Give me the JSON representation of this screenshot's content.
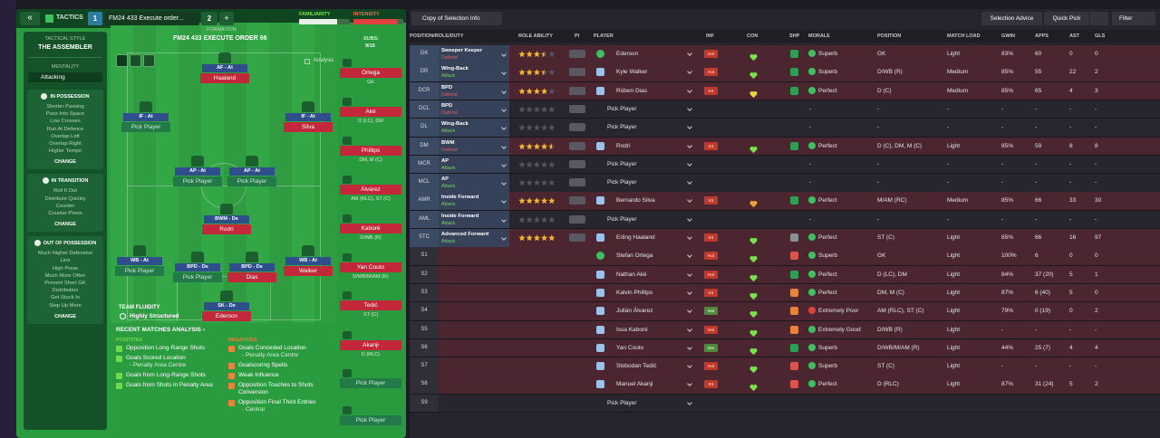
{
  "top_bar": {
    "back": "«",
    "tab": "TACTICS",
    "slot1": "1",
    "tactic_name": "FM24 433 Execute order...",
    "slot2": "2",
    "add": "+",
    "familiarity": "FAMILIARITY",
    "intensity": "INTENSITY"
  },
  "sidebar": {
    "style_label": "TACTICAL STYLE",
    "style": "THE ASSEMBLER",
    "mentality_label": "MENTALITY",
    "mentality": "Attacking",
    "sections": [
      {
        "title": "IN POSSESSION",
        "items": [
          "Shorter Passing",
          "Pass Into Space",
          "Low Crosses",
          "Run At Defence",
          "Overlap Left",
          "Overlap Right",
          "Higher Tempo"
        ],
        "button": "CHANGE"
      },
      {
        "title": "IN TRANSITION",
        "items": [
          "Roll It Out",
          "Distribute Quickly",
          "Counter",
          "Counter-Press"
        ],
        "button": "CHANGE"
      },
      {
        "title": "OUT OF POSSESSION",
        "items": [
          "Much Higher Defensive",
          "Line",
          "High Press",
          "Much More Often",
          "Prevent Short GK",
          "Distribution",
          "Get Stuck In",
          "Step Up More"
        ],
        "button": "CHANGE"
      }
    ]
  },
  "formation": {
    "label": "FORMATION",
    "name": "FM24 433 EXECUTE ORDER 66",
    "subs_label": "SUBS:",
    "subs_count": "9/15",
    "analysis": "Analysis",
    "fluidity_label": "TEAM FLUIDITY",
    "fluidity": "Highly Structured",
    "players": [
      {
        "role": "AF - At",
        "name": "Haaland"
      },
      {
        "role": "IF - At",
        "name": "Pick Player"
      },
      {
        "role": "IF - At",
        "name": "Silva"
      },
      {
        "role": "AP - At",
        "name": "Pick Player"
      },
      {
        "role": "AP - At",
        "name": "Pick Player"
      },
      {
        "role": "BWM - De",
        "name": "Rodri"
      },
      {
        "role": "WB - At",
        "name": "Pick Player"
      },
      {
        "role": "BPD - De",
        "name": "Pick Player"
      },
      {
        "role": "BPD - De",
        "name": "Dias"
      },
      {
        "role": "WB - At",
        "name": "Walker"
      },
      {
        "role": "SK - De",
        "name": "Ederson"
      }
    ]
  },
  "subs": [
    {
      "name": "Ortega",
      "position": "GK"
    },
    {
      "name": "Aké",
      "position": "D (LC), DM"
    },
    {
      "name": "Phillips",
      "position": "DM, M (C)"
    },
    {
      "name": "Álvarez",
      "position": "AM (RLC), ST (C)"
    },
    {
      "name": "Kaboré",
      "position": "D/WB (R)"
    },
    {
      "name": "Yan Couto",
      "position": "D/WB/M/AM (R)"
    },
    {
      "name": "Tedić",
      "position": "ST (C)"
    },
    {
      "name": "Akanji",
      "position": "D (RLC)"
    },
    {
      "name": "Pick Player"
    },
    {
      "name": "Pick Player"
    }
  ],
  "analysis": {
    "title": "RECENT MATCHES ANALYSIS ›",
    "positives_label": "POSITIVES",
    "positives": [
      {
        "text": "Opposition Long-Range Shots"
      },
      {
        "text": "Goals Scored Location",
        "detail": "- Penalty Area Centre"
      },
      {
        "text": "Goals from Long-Range Shots"
      },
      {
        "text": "Goals from Shots in Penalty Area"
      }
    ],
    "negatives_label": "NEGATIVES",
    "negatives": [
      {
        "text": "Goals Conceded Location",
        "detail": "- Penalty Area Centre"
      },
      {
        "text": "Goalscoring Spells"
      },
      {
        "text": "Weak Influence"
      },
      {
        "text": "Opposition Touches to Shots Conversion"
      },
      {
        "text": "Opposition Final Third Entries",
        "detail": "- Central"
      }
    ]
  },
  "toolbar": {
    "copy": "Copy of Selection Info",
    "advice": "Selection Advice",
    "quick_pick": "Quick Pick",
    "filter": "Filter"
  },
  "table": {
    "headers": [
      "POSITION/ROLE/DUTY",
      "ROLE ABILITY",
      "PI",
      "PLAYER",
      "INF",
      "CON",
      "SHP",
      "MORALE",
      "POSITION",
      "MATCH LOAD",
      "GWIN",
      "APPS",
      "AST",
      "GLS"
    ],
    "rows": [
      {
        "slot": "GK",
        "role": "Sweeper Keeper",
        "duty": "Defend",
        "duty_color": "#e35d62",
        "role_ability": 3.5,
        "player": "Ederson",
        "inf": "Hol",
        "inf_color": "#c0392b",
        "con_color": "#7be04f",
        "shp_color": "#2f9e52",
        "morale": "Superb",
        "morale_color": "#3fbf5f",
        "position": "GK",
        "match_load": "Light",
        "gwin": "83%",
        "apps": "60",
        "ast": 0,
        "gls": 0
      },
      {
        "slot": "DR",
        "role": "Wing-Back",
        "duty": "Attack",
        "duty_color": "#7bd85a",
        "role_ability": 3.5,
        "player": "Kyle Walker",
        "inf": "Hol",
        "inf_color": "#c0392b",
        "con_color": "#7be04f",
        "shp_color": "#2f9e52",
        "morale": "Superb",
        "morale_color": "#3fbf5f",
        "position": "D/WB (R)",
        "match_load": "Medium",
        "gwin": "85%",
        "apps": "55",
        "ast": 22,
        "gls": 2
      },
      {
        "slot": "DCR",
        "role": "BPD",
        "duty": "Defend",
        "duty_color": "#e35d62",
        "role_ability": 4,
        "player": "Rúben Dias",
        "inf": "Int",
        "inf_color": "#c0392b",
        "con_color": "#e8d24a",
        "shp_color": "#2f9e52",
        "morale": "Perfect",
        "morale_color": "#3fbf5f",
        "position": "D (C)",
        "match_load": "Medium",
        "gwin": "85%",
        "apps": "65",
        "ast": 4,
        "gls": 3
      },
      {
        "slot": "DCL",
        "role": "BPD",
        "duty": "Defend",
        "duty_color": "#e35d62",
        "player": "Pick Player",
        "morale": "-",
        "position": "-",
        "match_load": "-",
        "gwin": "-",
        "apps": "-",
        "ast": "-",
        "gls": "-"
      },
      {
        "slot": "DL",
        "role": "Wing-Back",
        "duty": "Attack",
        "duty_color": "#7bd85a",
        "player": "Pick Player",
        "morale": "-",
        "position": "-",
        "match_load": "-",
        "gwin": "-",
        "apps": "-",
        "ast": "-",
        "gls": "-"
      },
      {
        "slot": "DM",
        "role": "BWM",
        "duty": "Defend",
        "duty_color": "#e35d62",
        "role_ability": 4.5,
        "player": "Rodri",
        "inf": "Int",
        "inf_color": "#c0392b",
        "con_color": "#7be04f",
        "shp_color": "#2f9e52",
        "morale": "Perfect",
        "morale_color": "#3fbf5f",
        "position": "D (C), DM, M (C)",
        "match_load": "Light",
        "gwin": "85%",
        "apps": "59",
        "ast": 8,
        "gls": 8
      },
      {
        "slot": "MCR",
        "role": "AP",
        "duty": "Attack",
        "duty_color": "#7bd85a",
        "player": "Pick Player",
        "morale": "-",
        "position": "-",
        "match_load": "-",
        "gwin": "-",
        "apps": "-",
        "ast": "-",
        "gls": "-"
      },
      {
        "slot": "MCL",
        "role": "AP",
        "duty": "Attack",
        "duty_color": "#7bd85a",
        "player": "Pick Player",
        "morale": "-",
        "position": "-",
        "match_load": "-",
        "gwin": "-",
        "apps": "-",
        "ast": "-",
        "gls": "-"
      },
      {
        "slot": "AMR",
        "role": "Inside Forward",
        "duty": "Attack",
        "duty_color": "#7bd85a",
        "role_ability": 5,
        "player": "Bernardo Silva",
        "inf": "Int",
        "inf_color": "#c0392b",
        "con_color": "#e8a03a",
        "shp_color": "#2f9e52",
        "morale": "Perfect",
        "morale_color": "#3fbf5f",
        "position": "M/AM (RC)",
        "match_load": "Medium",
        "gwin": "85%",
        "apps": "66",
        "ast": 33,
        "gls": 30
      },
      {
        "slot": "AML",
        "role": "Inside Forward",
        "duty": "Attack",
        "duty_color": "#7bd85a",
        "player": "Pick Player",
        "morale": "-",
        "position": "-",
        "match_load": "-",
        "gwin": "-",
        "apps": "-",
        "ast": "-",
        "gls": "-"
      },
      {
        "slot": "STC",
        "role": "Advanced Forward",
        "duty": "Attack",
        "duty_color": "#7bd85a",
        "role_ability": 5,
        "player": "Erling Haaland",
        "inf": "Int",
        "inf_color": "#c0392b",
        "con_color": "#7be04f",
        "shp_color": "#8a8f94",
        "morale": "Perfect",
        "morale_color": "#3fbf5f",
        "position": "ST (C)",
        "match_load": "Light",
        "gwin": "85%",
        "apps": "66",
        "ast": 16,
        "gls": 97
      },
      {
        "slot": "S1",
        "player": "Stefan Ortega",
        "inf": "Hol",
        "inf_color": "#c0392b",
        "con_color": "#7be04f",
        "shp_color": "#d9534f",
        "morale": "Superb",
        "morale_color": "#3fbf5f",
        "position": "GK",
        "match_load": "Light",
        "gwin": "100%",
        "apps": "6",
        "ast": 0,
        "gls": 0
      },
      {
        "slot": "S2",
        "player": "Nathan Aké",
        "inf": "Hol",
        "inf_color": "#c0392b",
        "con_color": "#7be04f",
        "shp_color": "#2f9e52",
        "morale": "Perfect",
        "morale_color": "#3fbf5f",
        "position": "D (LC), DM",
        "match_load": "Light",
        "gwin": "84%",
        "apps": "37 (20)",
        "ast": 5,
        "gls": 1
      },
      {
        "slot": "S3",
        "player": "Kalvin Phillips",
        "inf": "Int",
        "inf_color": "#c0392b",
        "con_color": "#7be04f",
        "shp_color": "#e8843a",
        "morale": "Perfect",
        "morale_color": "#3fbf5f",
        "position": "DM, M (C)",
        "match_load": "Light",
        "gwin": "87%",
        "apps": "6 (40)",
        "ast": 5,
        "gls": 0
      },
      {
        "slot": "S4",
        "player": "Julián Álvarez",
        "inf": "Nat",
        "inf_color": "#4d8a3a",
        "con_color": "#7be04f",
        "shp_color": "#e8843a",
        "morale": "Extremely Poor",
        "morale_color": "#d9443c",
        "position": "AM (RLC), ST (C)",
        "match_load": "Light",
        "gwin": "79%",
        "apps": "0 (19)",
        "ast": 0,
        "gls": 2
      },
      {
        "slot": "S5",
        "player": "Issa Kaboré",
        "inf": "Hol",
        "inf_color": "#c0392b",
        "con_color": "#7be04f",
        "shp_color": "#e8843a",
        "morale": "Extremely Good",
        "morale_color": "#3fbf5f",
        "position": "D/WB (R)",
        "match_load": "Light",
        "gwin": "-",
        "apps": "-",
        "ast": "-",
        "gls": "-"
      },
      {
        "slot": "S6",
        "player": "Yan Couto",
        "inf": "Nat",
        "inf_color": "#4d8a3a",
        "con_color": "#7be04f",
        "shp_color": "#2f9e52",
        "morale": "Superb",
        "morale_color": "#3fbf5f",
        "position": "D/WB/M/AM (R)",
        "match_load": "Light",
        "gwin": "44%",
        "apps": "25 (7)",
        "ast": 4,
        "gls": 4
      },
      {
        "slot": "S7",
        "player": "Slobodan Tedić",
        "inf": "Hol",
        "inf_color": "#c0392b",
        "con_color": "#7be04f",
        "shp_color": "#d9534f",
        "morale": "Superb",
        "morale_color": "#3fbf5f",
        "position": "ST (C)",
        "match_load": "Light",
        "gwin": "-",
        "apps": "-",
        "ast": "-",
        "gls": "-"
      },
      {
        "slot": "S8",
        "player": "Manuel Akanji",
        "inf": "Int",
        "inf_color": "#c0392b",
        "con_color": "#7be04f",
        "shp_color": "#d9534f",
        "morale": "Perfect",
        "morale_color": "#3fbf5f",
        "position": "D (RLC)",
        "match_load": "Light",
        "gwin": "87%",
        "apps": "31 (24)",
        "ast": 5,
        "gls": 2
      },
      {
        "slot": "S9",
        "player": "Pick Player"
      }
    ]
  }
}
